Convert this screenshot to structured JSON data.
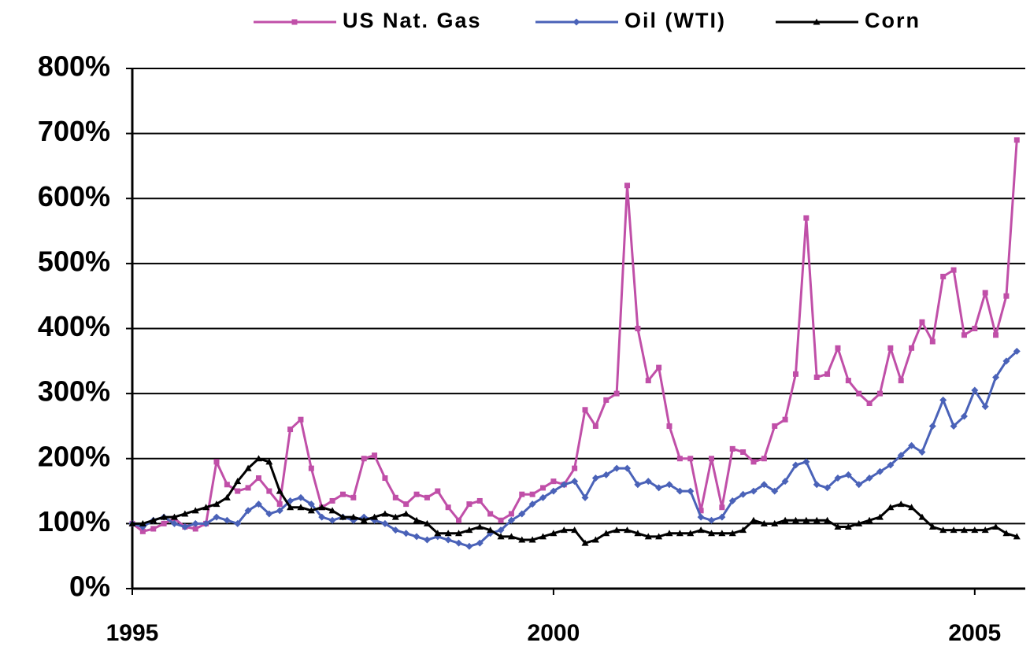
{
  "chart_data": {
    "type": "line",
    "x": [
      1995,
      1995.125,
      1995.25,
      1995.375,
      1995.5,
      1995.625,
      1995.75,
      1995.875,
      1996,
      1996.125,
      1996.25,
      1996.375,
      1996.5,
      1996.625,
      1996.75,
      1996.875,
      1997,
      1997.125,
      1997.25,
      1997.375,
      1997.5,
      1997.625,
      1997.75,
      1997.875,
      1998,
      1998.125,
      1998.25,
      1998.375,
      1998.5,
      1998.625,
      1998.75,
      1998.875,
      1999,
      1999.125,
      1999.25,
      1999.375,
      1999.5,
      1999.625,
      1999.75,
      1999.875,
      2000,
      2000.125,
      2000.25,
      2000.375,
      2000.5,
      2000.625,
      2000.75,
      2000.875,
      2001,
      2001.125,
      2001.25,
      2001.375,
      2001.5,
      2001.625,
      2001.75,
      2001.875,
      2002,
      2002.125,
      2002.25,
      2002.375,
      2002.5,
      2002.625,
      2002.75,
      2002.875,
      2003,
      2003.125,
      2003.25,
      2003.375,
      2003.5,
      2003.625,
      2003.75,
      2003.875,
      2004,
      2004.125,
      2004.25,
      2004.375,
      2004.5,
      2004.625,
      2004.75,
      2004.875,
      2005,
      2005.125,
      2005.25,
      2005.375,
      2005.5
    ],
    "series": [
      {
        "name": "US Nat. Gas",
        "color": "#c04fa8",
        "marker": "square",
        "values": [
          100,
          88,
          92,
          100,
          108,
          95,
          92,
          100,
          195,
          160,
          150,
          155,
          170,
          150,
          130,
          245,
          260,
          185,
          125,
          135,
          145,
          140,
          200,
          205,
          170,
          140,
          130,
          145,
          140,
          150,
          125,
          105,
          130,
          135,
          115,
          105,
          115,
          145,
          145,
          155,
          165,
          160,
          185,
          275,
          250,
          290,
          300,
          620,
          400,
          320,
          340,
          250,
          200,
          200,
          120,
          200,
          125,
          215,
          210,
          195,
          200,
          250,
          260,
          330,
          570,
          325,
          330,
          370,
          320,
          300,
          285,
          300,
          370,
          320,
          370,
          410,
          380,
          480,
          490,
          390,
          400,
          455,
          390,
          450,
          690
        ]
      },
      {
        "name": "Oil (WTI)",
        "color": "#4a62b8",
        "marker": "diamond",
        "values": [
          100,
          95,
          105,
          110,
          100,
          95,
          100,
          100,
          110,
          105,
          100,
          120,
          130,
          115,
          120,
          135,
          140,
          130,
          110,
          105,
          110,
          105,
          110,
          105,
          100,
          90,
          85,
          80,
          75,
          80,
          75,
          70,
          65,
          70,
          85,
          90,
          105,
          115,
          130,
          140,
          150,
          160,
          165,
          140,
          170,
          175,
          185,
          185,
          160,
          165,
          155,
          160,
          150,
          150,
          110,
          105,
          110,
          135,
          145,
          150,
          160,
          150,
          165,
          190,
          195,
          160,
          155,
          170,
          175,
          160,
          170,
          180,
          190,
          205,
          220,
          210,
          250,
          290,
          250,
          265,
          305,
          280,
          325,
          350,
          365
        ]
      },
      {
        "name": "Corn",
        "color": "#000000",
        "marker": "triangle",
        "values": [
          100,
          100,
          105,
          110,
          110,
          115,
          120,
          125,
          130,
          140,
          165,
          185,
          200,
          195,
          150,
          125,
          125,
          120,
          125,
          120,
          110,
          110,
          105,
          110,
          115,
          110,
          115,
          105,
          100,
          85,
          85,
          85,
          90,
          95,
          90,
          80,
          80,
          75,
          75,
          80,
          85,
          90,
          90,
          70,
          75,
          85,
          90,
          90,
          85,
          80,
          80,
          85,
          85,
          85,
          90,
          85,
          85,
          85,
          90,
          105,
          100,
          100,
          105,
          105,
          105,
          105,
          105,
          95,
          95,
          100,
          105,
          110,
          125,
          130,
          125,
          110,
          95,
          90,
          90,
          90,
          90,
          90,
          95,
          85,
          80
        ]
      }
    ],
    "xlim": [
      1995,
      2005.6
    ],
    "xticks": [
      1995,
      2000,
      2005
    ],
    "ylim": [
      0,
      800
    ],
    "yticks": [
      {
        "value": 0,
        "label": "0%"
      },
      {
        "value": 100,
        "label": "100%"
      },
      {
        "value": 200,
        "label": "200%"
      },
      {
        "value": 300,
        "label": "300%"
      },
      {
        "value": 400,
        "label": "400%"
      },
      {
        "value": 500,
        "label": "500%"
      },
      {
        "value": 600,
        "label": "600%"
      },
      {
        "value": 700,
        "label": "700%"
      },
      {
        "value": 800,
        "label": "800%"
      }
    ],
    "grid": true,
    "legend": "top"
  }
}
